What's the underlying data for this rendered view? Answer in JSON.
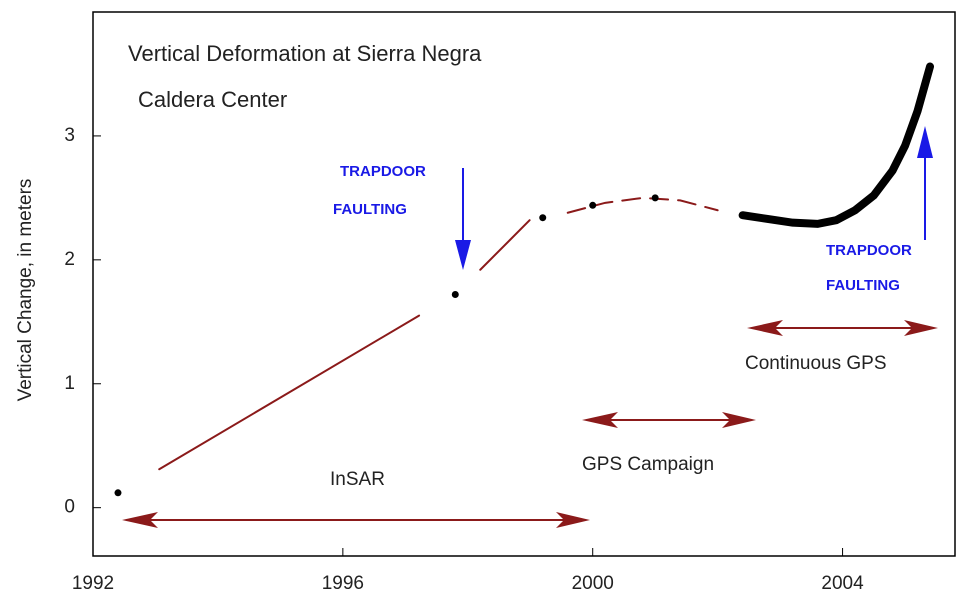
{
  "chart_data": {
    "type": "line",
    "title": "Vertical Deformation at Sierra Negra",
    "subtitle": "Caldera Center",
    "y_label": "Vertical Change, in meters",
    "xlim": [
      1992,
      2005.8
    ],
    "ylim": [
      -0.39,
      4.0
    ],
    "xticks": [
      1992,
      1996,
      2000,
      2004
    ],
    "yticks": [
      0,
      1,
      2,
      3
    ],
    "series": [
      {
        "style": "line",
        "color": "#8b1a1a",
        "x": [
          1993.06,
          1997.22,
          1998.2,
          1998.99
        ],
        "values": [
          0.31,
          1.55,
          null,
          1.92
        ]
      },
      {
        "style": "line",
        "color": "#8b1a1a",
        "x": [
          1998.2,
          1998.99
        ],
        "values": [
          1.92,
          2.32
        ]
      },
      {
        "style": "dashed",
        "color": "#8b1a1a",
        "x": [
          1999.6,
          2000.2,
          2000.8,
          2001.4,
          2002.0
        ],
        "values": [
          2.38,
          2.46,
          2.5,
          2.48,
          2.4
        ]
      },
      {
        "style": "markers",
        "color": "#000000",
        "x": [
          1992.4,
          1997.8,
          1999.2,
          2000.0,
          2001.0
        ],
        "values": [
          0.12,
          1.72,
          2.34,
          2.44,
          2.5
        ]
      },
      {
        "style": "thick",
        "color": "#000000",
        "x": [
          2002.4,
          2002.8,
          2003.2,
          2003.6,
          2003.9,
          2004.2,
          2004.5,
          2004.8,
          2005.0,
          2005.2,
          2005.4
        ],
        "values": [
          2.36,
          2.33,
          2.3,
          2.29,
          2.32,
          2.4,
          2.52,
          2.72,
          2.92,
          3.2,
          3.56
        ]
      }
    ],
    "annotations": [
      "TRAPDOOR",
      "FAULTING",
      "TRAPDOOR",
      "FAULTING",
      "InSAR",
      "GPS Campaign",
      "Continuous GPS"
    ]
  }
}
